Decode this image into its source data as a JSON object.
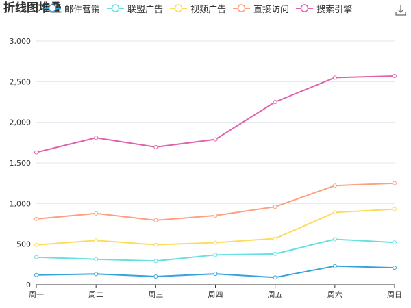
{
  "title": "折线图堆叠",
  "chart_data": {
    "type": "line",
    "title": "折线图堆叠",
    "stacked": true,
    "categories": [
      "周一",
      "周二",
      "周三",
      "周四",
      "周五",
      "周六",
      "周日"
    ],
    "ylim": [
      0,
      3000
    ],
    "yticks": [
      0,
      500,
      1000,
      1500,
      2000,
      2500,
      3000
    ],
    "ytick_labels": [
      "0",
      "500",
      "1,000",
      "1,500",
      "2,000",
      "2,500",
      "3,000"
    ],
    "grid": true,
    "legend_position": "top",
    "series": [
      {
        "name": "邮件营销",
        "color": "#37a2da",
        "values": [
          120,
          132,
          101,
          134,
          90,
          230,
          210
        ]
      },
      {
        "name": "联盟广告",
        "color": "#67e0e3",
        "values": [
          340,
          314,
          292,
          368,
          380,
          560,
          520
        ]
      },
      {
        "name": "视频广告",
        "color": "#ffdb5c",
        "values": [
          490,
          546,
          492,
          518,
          570,
          890,
          930
        ]
      },
      {
        "name": "直接访问",
        "color": "#ff9f7f",
        "values": [
          810,
          878,
          793,
          852,
          960,
          1220,
          1250
        ]
      },
      {
        "name": "搜索引擎",
        "color": "#e062ae",
        "values": [
          1630,
          1810,
          1695,
          1790,
          2250,
          2550,
          2570
        ]
      }
    ]
  },
  "toolbox": {
    "icon": "download-icon"
  }
}
